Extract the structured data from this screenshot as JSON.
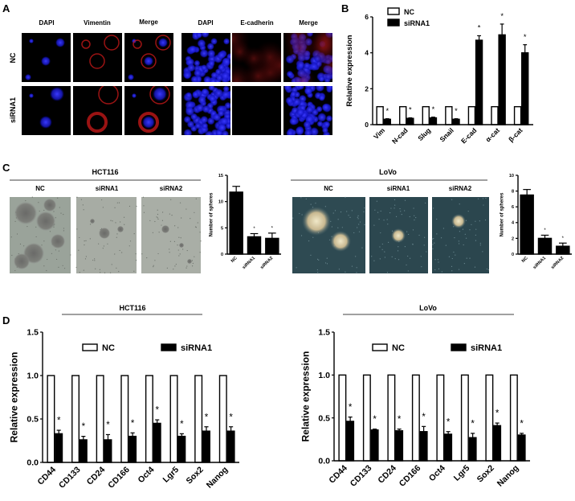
{
  "panels": {
    "A": {
      "label": "A",
      "left_columns": [
        "DAPI",
        "Vimentin",
        "Merge"
      ],
      "right_columns": [
        "DAPI",
        "E-cadherin",
        "Merge"
      ],
      "rows": [
        "NC",
        "siRNA1"
      ]
    },
    "B": {
      "label": "B"
    },
    "C": {
      "label": "C",
      "hct116": {
        "title": "HCT116",
        "columns": [
          "NC",
          "siRNA1",
          "siRNA2"
        ]
      },
      "lovo": {
        "title": "LoVo",
        "columns": [
          "NC",
          "siRNA1",
          "siRNA2"
        ]
      }
    },
    "D": {
      "label": "D",
      "left_title": "HCT116",
      "right_title": "LoVo"
    }
  },
  "colors": {
    "nc_fill": "#ffffff",
    "sirna_fill": "#000000",
    "dapi": "#2020ff",
    "red_stain": "#d01818"
  },
  "chart_data": [
    {
      "id": "B",
      "type": "bar",
      "categories": [
        "Vim",
        "N-cad",
        "Slug",
        "Snail",
        "E-cad",
        "α-cat",
        "β-cat"
      ],
      "series": [
        {
          "name": "NC",
          "values": [
            1,
            1,
            1,
            1,
            1,
            1,
            1
          ],
          "errors": [
            0,
            0,
            0,
            0,
            0,
            0,
            0
          ]
        },
        {
          "name": "siRNA1",
          "values": [
            0.3,
            0.35,
            0.38,
            0.3,
            4.7,
            5.0,
            4.0
          ],
          "errors": [
            0.03,
            0.03,
            0.04,
            0.03,
            0.25,
            0.6,
            0.45
          ]
        }
      ],
      "significance": [
        "*",
        "*",
        "*",
        "*",
        "*",
        "*",
        "*"
      ],
      "xlabel": "",
      "ylabel": "Relative expression",
      "ylim": [
        0,
        6
      ],
      "yticks": [
        "0",
        "2",
        "4",
        "6"
      ],
      "legend": "top-left"
    },
    {
      "id": "C-HCT116",
      "type": "bar",
      "categories": [
        "NC",
        "siRNA1",
        "siRNA2"
      ],
      "values": [
        11.8,
        3.3,
        3.0
      ],
      "errors": [
        1.1,
        0.6,
        1.0
      ],
      "significance": [
        "",
        "*",
        "*"
      ],
      "ylabel": "Number of spheres",
      "ylim": [
        0,
        15
      ],
      "yticks": [
        "0",
        "5",
        "10",
        "15"
      ]
    },
    {
      "id": "C-LoVo",
      "type": "bar",
      "categories": [
        "NC",
        "siRNA1",
        "siRNA2"
      ],
      "values": [
        7.5,
        2.0,
        1.0
      ],
      "errors": [
        0.7,
        0.4,
        0.4
      ],
      "significance": [
        "",
        "*",
        "*"
      ],
      "ylabel": "Number of spheres",
      "ylim": [
        0,
        10
      ],
      "yticks": [
        "0",
        "2",
        "4",
        "6",
        "8",
        "10"
      ]
    },
    {
      "id": "D-HCT116",
      "type": "bar",
      "categories": [
        "CD44",
        "CD133",
        "CD24",
        "CD166",
        "Oct4",
        "Lgr5",
        "Sox2",
        "Nanog"
      ],
      "series": [
        {
          "name": "NC",
          "values": [
            1,
            1,
            1,
            1,
            1,
            1,
            1,
            1
          ],
          "errors": [
            0,
            0,
            0,
            0,
            0,
            0,
            0,
            0
          ]
        },
        {
          "name": "siRNA1",
          "values": [
            0.33,
            0.26,
            0.26,
            0.3,
            0.45,
            0.3,
            0.36,
            0.36
          ],
          "errors": [
            0.04,
            0.04,
            0.06,
            0.04,
            0.04,
            0.03,
            0.05,
            0.05
          ]
        }
      ],
      "significance": [
        "*",
        "*",
        "*",
        "*",
        "*",
        "*",
        "*",
        "*"
      ],
      "ylabel": "Relative expression",
      "ylim": [
        0,
        1.5
      ],
      "yticks": [
        "0.0",
        "0.5",
        "1.0",
        "1.5"
      ],
      "legend": "top"
    },
    {
      "id": "D-LoVo",
      "type": "bar",
      "categories": [
        "CD44",
        "CD133",
        "CD24",
        "CD166",
        "Oct4",
        "Lgr5",
        "Sox2",
        "Nanog"
      ],
      "series": [
        {
          "name": "NC",
          "values": [
            1,
            1,
            1,
            1,
            1,
            1,
            1,
            1
          ],
          "errors": [
            0,
            0,
            0,
            0,
            0,
            0,
            0,
            0
          ]
        },
        {
          "name": "siRNA1",
          "values": [
            0.46,
            0.36,
            0.35,
            0.34,
            0.31,
            0.27,
            0.41,
            0.3
          ],
          "errors": [
            0.05,
            0.01,
            0.02,
            0.06,
            0.03,
            0.05,
            0.03,
            0.02
          ]
        }
      ],
      "significance": [
        "*",
        "*",
        "*",
        "*",
        "*",
        "*",
        "*",
        "*"
      ],
      "ylabel": "Relative expression",
      "ylim": [
        0,
        1.5
      ],
      "yticks": [
        "0.0",
        "0.5",
        "1.0",
        "1.5"
      ],
      "legend": "top"
    }
  ]
}
